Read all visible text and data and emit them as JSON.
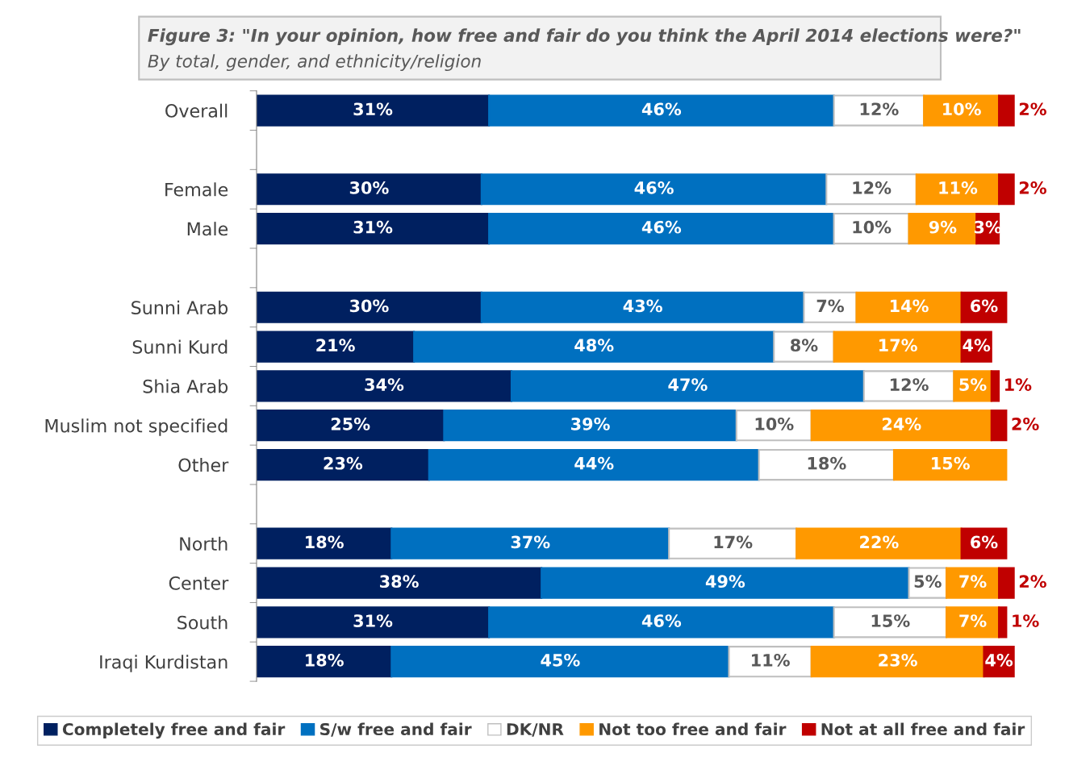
{
  "chart_data": {
    "type": "bar",
    "orientation": "horizontal",
    "stacked": true,
    "title": "Figure 3: \"In your opinion, how free and fair do you think the April 2014 elections were?\"",
    "subtitle": "By total, gender, and ethnicity/religion",
    "categories": [
      "Overall",
      null,
      "Female",
      "Male",
      null,
      "Sunni Arab",
      "Sunni Kurd",
      "Shia Arab",
      "Muslim not specified",
      "Other",
      null,
      "North",
      "Center",
      "South",
      "Iraqi Kurdistan"
    ],
    "series": [
      {
        "name": "Completely free and fair",
        "color": "#002060",
        "values": [
          31,
          null,
          30,
          31,
          null,
          30,
          21,
          34,
          25,
          23,
          null,
          18,
          38,
          31,
          18
        ],
        "value_labels": [
          "31%",
          null,
          "30%",
          "31%",
          null,
          "30%",
          "21%",
          "34%",
          "25%",
          "23%",
          null,
          "18%",
          "38%",
          "31%",
          "18%"
        ]
      },
      {
        "name": "S/w free and fair",
        "color": "#0070c0",
        "values": [
          46,
          null,
          46,
          46,
          null,
          43,
          48,
          47,
          39,
          44,
          null,
          37,
          49,
          46,
          45
        ],
        "value_labels": [
          "46%",
          null,
          "46%",
          "46%",
          null,
          "43%",
          "48%",
          "47%",
          "39%",
          "44%",
          null,
          "37%",
          "49%",
          "46%",
          "45%"
        ]
      },
      {
        "name": "DK/NR",
        "color": "#ffffff",
        "values": [
          12,
          null,
          12,
          10,
          null,
          7,
          8,
          12,
          10,
          18,
          null,
          17,
          5,
          15,
          11
        ],
        "value_labels": [
          "12%",
          null,
          "12%",
          "10%",
          null,
          "7%",
          "8%",
          "12%",
          "10%",
          "18%",
          null,
          "17%",
          "5%",
          "15%",
          "11%"
        ]
      },
      {
        "name": "Not too free and fair",
        "color": "#ff9900",
        "values": [
          10,
          null,
          11,
          9,
          null,
          14,
          17,
          5,
          24,
          15,
          null,
          22,
          7,
          7,
          23
        ],
        "value_labels": [
          "10%",
          null,
          "11%",
          "9%",
          null,
          "14%",
          "17%",
          "5%",
          "24%",
          "15%",
          null,
          "22%",
          "7%",
          "7%",
          "23%"
        ]
      },
      {
        "name": "Not at all free and fair",
        "color": "#c00000",
        "values": [
          2,
          null,
          2,
          3,
          null,
          6,
          4,
          1,
          2,
          null,
          null,
          6,
          2,
          1,
          4
        ],
        "value_labels": [
          "2%",
          null,
          "2%",
          "3%",
          null,
          "6%",
          "4%",
          "1%",
          "2%",
          null,
          null,
          "6%",
          "2%",
          "1%",
          "4%"
        ]
      }
    ],
    "tick_labels": "y",
    "legend": "bottom"
  }
}
